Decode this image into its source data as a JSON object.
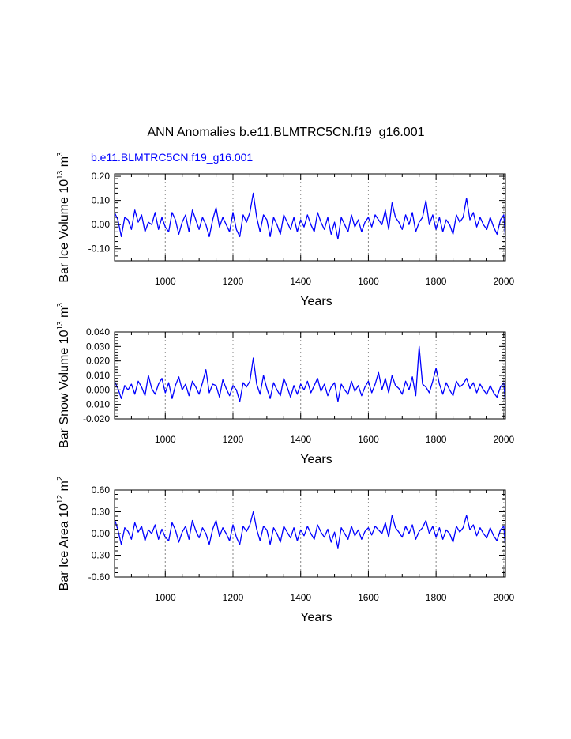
{
  "figure": {
    "title": "ANN Anomalies b.e11.BLMTRC5CN.f19_g16.001",
    "subtitle": "b.e11.BLMTRC5CN.f19_g16.001",
    "series_color": "#0000ff",
    "gridline_color": "#888888"
  },
  "chart_data": [
    {
      "type": "line",
      "title": "ANN Anomalies b.e11.BLMTRC5CN.f19_g16.001",
      "subtitle": "b.e11.BLMTRC5CN.f19_g16.001",
      "xlabel": "Years",
      "ylabel": {
        "main": "Bar Ice Volume 10",
        "exp": "13",
        "unit": " m",
        "unit_exp": "3"
      },
      "xlim": [
        850,
        2005
      ],
      "ylim": [
        -0.15,
        0.21
      ],
      "xticks": [
        1000,
        1200,
        1400,
        1600,
        1800,
        2000
      ],
      "xtick_labels": [
        "1000",
        "1200",
        "1400",
        "1600",
        "1800",
        "2000"
      ],
      "yticks": [
        -0.1,
        0.0,
        0.1,
        0.2
      ],
      "ytick_labels": [
        "-0.10",
        "0.00",
        "0.10",
        "0.20"
      ],
      "series": [
        {
          "name": "b.e11.BLMTRC5CN.f19_g16.001",
          "x": [
            850,
            860,
            870,
            880,
            890,
            900,
            910,
            920,
            930,
            940,
            950,
            960,
            970,
            980,
            990,
            1000,
            1010,
            1020,
            1030,
            1040,
            1050,
            1060,
            1070,
            1080,
            1090,
            1100,
            1110,
            1120,
            1130,
            1140,
            1150,
            1160,
            1170,
            1180,
            1190,
            1200,
            1210,
            1220,
            1230,
            1240,
            1250,
            1260,
            1270,
            1280,
            1290,
            1300,
            1310,
            1320,
            1330,
            1340,
            1350,
            1360,
            1370,
            1380,
            1390,
            1400,
            1410,
            1420,
            1430,
            1440,
            1450,
            1460,
            1470,
            1480,
            1490,
            1500,
            1510,
            1520,
            1530,
            1540,
            1550,
            1560,
            1570,
            1580,
            1590,
            1600,
            1610,
            1620,
            1630,
            1640,
            1650,
            1660,
            1670,
            1680,
            1690,
            1700,
            1710,
            1720,
            1730,
            1740,
            1750,
            1760,
            1770,
            1780,
            1790,
            1800,
            1810,
            1820,
            1830,
            1840,
            1850,
            1860,
            1870,
            1880,
            1890,
            1900,
            1910,
            1920,
            1930,
            1940,
            1950,
            1960,
            1970,
            1980,
            1990,
            2000,
            2005
          ],
          "y": [
            0.05,
            0.02,
            -0.05,
            0.03,
            0.02,
            -0.02,
            0.06,
            0.01,
            0.04,
            -0.03,
            0.01,
            0.0,
            0.05,
            -0.02,
            0.03,
            -0.01,
            -0.03,
            0.05,
            0.02,
            -0.04,
            0.01,
            0.04,
            -0.03,
            0.06,
            0.02,
            -0.02,
            0.03,
            0.0,
            -0.05,
            0.02,
            0.07,
            -0.01,
            0.03,
            0.0,
            -0.03,
            0.05,
            -0.02,
            -0.05,
            0.04,
            0.01,
            0.05,
            0.13,
            0.03,
            -0.03,
            0.04,
            0.02,
            -0.05,
            0.03,
            0.0,
            -0.04,
            0.04,
            0.01,
            -0.02,
            0.03,
            -0.03,
            0.02,
            -0.01,
            0.04,
            0.0,
            -0.03,
            0.05,
            0.01,
            -0.02,
            0.03,
            -0.04,
            0.01,
            -0.06,
            0.03,
            0.0,
            -0.03,
            0.04,
            -0.01,
            0.02,
            -0.03,
            0.01,
            0.03,
            -0.01,
            0.04,
            0.02,
            0.0,
            0.06,
            -0.02,
            0.09,
            0.03,
            0.01,
            -0.02,
            0.04,
            0.0,
            0.05,
            -0.03,
            0.01,
            0.03,
            0.1,
            0.0,
            0.04,
            -0.02,
            0.03,
            -0.03,
            0.02,
            0.0,
            -0.04,
            0.04,
            0.01,
            0.03,
            0.11,
            0.02,
            0.05,
            -0.01,
            0.03,
            0.0,
            -0.02,
            0.03,
            -0.01,
            -0.04,
            0.02,
            0.04,
            -0.06
          ]
        }
      ]
    },
    {
      "type": "line",
      "xlabel": "Years",
      "ylabel": {
        "main": "Bar Snow Volume 10",
        "exp": "13",
        "unit": " m",
        "unit_exp": "3"
      },
      "xlim": [
        850,
        2005
      ],
      "ylim": [
        -0.02,
        0.04
      ],
      "xticks": [
        1000,
        1200,
        1400,
        1600,
        1800,
        2000
      ],
      "xtick_labels": [
        "1000",
        "1200",
        "1400",
        "1600",
        "1800",
        "2000"
      ],
      "yticks": [
        -0.02,
        -0.01,
        0.0,
        0.01,
        0.02,
        0.03,
        0.04
      ],
      "ytick_labels": [
        "-0.020",
        "-0.010",
        "0.000",
        "0.010",
        "0.020",
        "0.030",
        "0.040"
      ],
      "series": [
        {
          "name": "b.e11.BLMTRC5CN.f19_g16.001",
          "x": [
            850,
            860,
            870,
            880,
            890,
            900,
            910,
            920,
            930,
            940,
            950,
            960,
            970,
            980,
            990,
            1000,
            1010,
            1020,
            1030,
            1040,
            1050,
            1060,
            1070,
            1080,
            1090,
            1100,
            1110,
            1120,
            1130,
            1140,
            1150,
            1160,
            1170,
            1180,
            1190,
            1200,
            1210,
            1220,
            1230,
            1240,
            1250,
            1260,
            1270,
            1280,
            1290,
            1300,
            1310,
            1320,
            1330,
            1340,
            1350,
            1360,
            1370,
            1380,
            1390,
            1400,
            1410,
            1420,
            1430,
            1440,
            1450,
            1460,
            1470,
            1480,
            1490,
            1500,
            1510,
            1520,
            1530,
            1540,
            1550,
            1560,
            1570,
            1580,
            1590,
            1600,
            1610,
            1620,
            1630,
            1640,
            1650,
            1660,
            1670,
            1680,
            1690,
            1700,
            1710,
            1720,
            1730,
            1740,
            1750,
            1760,
            1770,
            1780,
            1790,
            1800,
            1810,
            1820,
            1830,
            1840,
            1850,
            1860,
            1870,
            1880,
            1890,
            1900,
            1910,
            1920,
            1930,
            1940,
            1950,
            1960,
            1970,
            1980,
            1990,
            2000,
            2005
          ],
          "y": [
            0.006,
            0.001,
            -0.006,
            0.003,
            0.0,
            0.004,
            -0.003,
            0.006,
            0.002,
            -0.004,
            0.01,
            0.001,
            -0.003,
            0.004,
            0.008,
            -0.002,
            0.005,
            -0.006,
            0.003,
            0.009,
            0.0,
            0.004,
            -0.004,
            0.006,
            0.002,
            -0.003,
            0.005,
            0.014,
            -0.002,
            0.004,
            0.003,
            -0.005,
            0.007,
            0.001,
            -0.004,
            0.003,
            0.0,
            -0.008,
            0.005,
            0.002,
            0.006,
            0.022,
            0.004,
            -0.003,
            0.01,
            0.001,
            -0.006,
            0.005,
            0.0,
            -0.004,
            0.008,
            0.002,
            -0.005,
            0.003,
            -0.003,
            0.004,
            0.0,
            0.006,
            -0.002,
            0.003,
            0.008,
            -0.001,
            0.004,
            -0.004,
            0.002,
            0.005,
            -0.008,
            0.004,
            0.0,
            -0.003,
            0.006,
            -0.001,
            0.003,
            -0.004,
            0.002,
            0.006,
            -0.002,
            0.004,
            0.012,
            0.0,
            0.008,
            -0.002,
            0.01,
            0.003,
            0.001,
            -0.003,
            0.006,
            0.0,
            0.009,
            -0.004,
            0.03,
            0.004,
            0.002,
            -0.002,
            0.006,
            0.015,
            0.004,
            -0.003,
            0.005,
            0.0,
            -0.004,
            0.006,
            0.002,
            0.004,
            0.008,
            0.001,
            0.005,
            -0.002,
            0.004,
            0.0,
            -0.003,
            0.003,
            -0.002,
            -0.005,
            0.002,
            0.005,
            -0.01
          ]
        }
      ]
    },
    {
      "type": "line",
      "xlabel": "Years",
      "ylabel": {
        "main": "Bar Ice Area 10",
        "exp": "12",
        "unit": " m",
        "unit_exp": "2"
      },
      "xlim": [
        850,
        2005
      ],
      "ylim": [
        -0.6,
        0.6
      ],
      "xticks": [
        1000,
        1200,
        1400,
        1600,
        1800,
        2000
      ],
      "xtick_labels": [
        "1000",
        "1200",
        "1400",
        "1600",
        "1800",
        "2000"
      ],
      "yticks": [
        -0.6,
        -0.3,
        0.0,
        0.3,
        0.6
      ],
      "ytick_labels": [
        "-0.60",
        "-0.30",
        "0.00",
        "0.30",
        "0.60"
      ],
      "series": [
        {
          "name": "b.e11.BLMTRC5CN.f19_g16.001",
          "x": [
            850,
            860,
            870,
            880,
            890,
            900,
            910,
            920,
            930,
            940,
            950,
            960,
            970,
            980,
            990,
            1000,
            1010,
            1020,
            1030,
            1040,
            1050,
            1060,
            1070,
            1080,
            1090,
            1100,
            1110,
            1120,
            1130,
            1140,
            1150,
            1160,
            1170,
            1180,
            1190,
            1200,
            1210,
            1220,
            1230,
            1240,
            1250,
            1260,
            1270,
            1280,
            1290,
            1300,
            1310,
            1320,
            1330,
            1340,
            1350,
            1360,
            1370,
            1380,
            1390,
            1400,
            1410,
            1420,
            1430,
            1440,
            1450,
            1460,
            1470,
            1480,
            1490,
            1500,
            1510,
            1520,
            1530,
            1540,
            1550,
            1560,
            1570,
            1580,
            1590,
            1600,
            1610,
            1620,
            1630,
            1640,
            1650,
            1660,
            1670,
            1680,
            1690,
            1700,
            1710,
            1720,
            1730,
            1740,
            1750,
            1760,
            1770,
            1780,
            1790,
            1800,
            1810,
            1820,
            1830,
            1840,
            1850,
            1860,
            1870,
            1880,
            1890,
            1900,
            1910,
            1920,
            1930,
            1940,
            1950,
            1960,
            1970,
            1980,
            1990,
            2000,
            2005
          ],
          "y": [
            0.2,
            0.05,
            -0.15,
            0.08,
            0.03,
            -0.08,
            0.15,
            0.02,
            0.1,
            -0.1,
            0.05,
            0.0,
            0.12,
            -0.08,
            0.06,
            -0.05,
            -0.1,
            0.15,
            0.05,
            -0.12,
            0.02,
            0.1,
            -0.08,
            0.18,
            0.04,
            -0.06,
            0.08,
            0.0,
            -0.15,
            0.06,
            0.18,
            -0.04,
            0.08,
            0.0,
            -0.1,
            0.12,
            -0.05,
            -0.15,
            0.1,
            0.03,
            0.12,
            0.3,
            0.06,
            -0.1,
            0.1,
            0.05,
            -0.15,
            0.08,
            0.0,
            -0.12,
            0.1,
            0.02,
            -0.06,
            0.08,
            -0.1,
            0.05,
            -0.03,
            0.1,
            0.0,
            -0.08,
            0.12,
            0.02,
            -0.05,
            0.06,
            -0.12,
            0.02,
            -0.2,
            0.08,
            0.0,
            -0.08,
            0.1,
            -0.03,
            0.05,
            -0.08,
            0.03,
            0.08,
            -0.02,
            0.1,
            0.05,
            0.0,
            0.15,
            -0.05,
            0.25,
            0.08,
            0.02,
            -0.05,
            0.1,
            0.0,
            0.12,
            -0.08,
            0.03,
            0.08,
            0.18,
            0.0,
            0.1,
            -0.05,
            0.08,
            -0.08,
            0.05,
            0.0,
            -0.12,
            0.1,
            0.02,
            0.08,
            0.25,
            0.05,
            0.12,
            -0.03,
            0.08,
            0.0,
            -0.06,
            0.08,
            -0.03,
            -0.1,
            0.05,
            0.1,
            -0.2
          ]
        }
      ]
    }
  ]
}
